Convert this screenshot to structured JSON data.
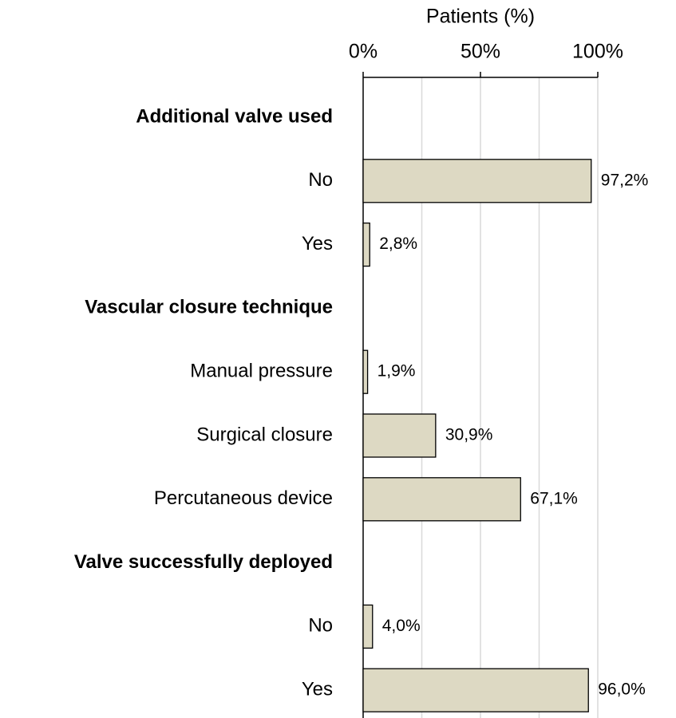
{
  "chart_data": {
    "type": "bar",
    "orientation": "horizontal",
    "x_label": "Patients (%)",
    "categories": [
      "Additional valve used",
      "No",
      "Yes",
      "Vascular closure technique",
      "Manual pressure",
      "Surgical closure",
      "Percutaneous device",
      "Valve successfully deployed",
      "No",
      "Yes"
    ],
    "values": [
      null,
      97.2,
      2.8,
      null,
      1.9,
      30.9,
      67.1,
      null,
      4.0,
      96.0
    ],
    "value_labels": [
      null,
      "97,2%",
      "2,8%",
      null,
      "1,9%",
      "30,9%",
      "67,1%",
      null,
      "4,0%",
      "96,0%"
    ],
    "color": "#ddd9c3",
    "xlim": [
      0,
      100
    ],
    "xticks": [
      {
        "value": 0,
        "label": "0%"
      },
      {
        "value": 50,
        "label": "50%"
      },
      {
        "value": 100,
        "label": "100%"
      }
    ],
    "minor_xticks": [
      25,
      75
    ],
    "grid": true
  }
}
